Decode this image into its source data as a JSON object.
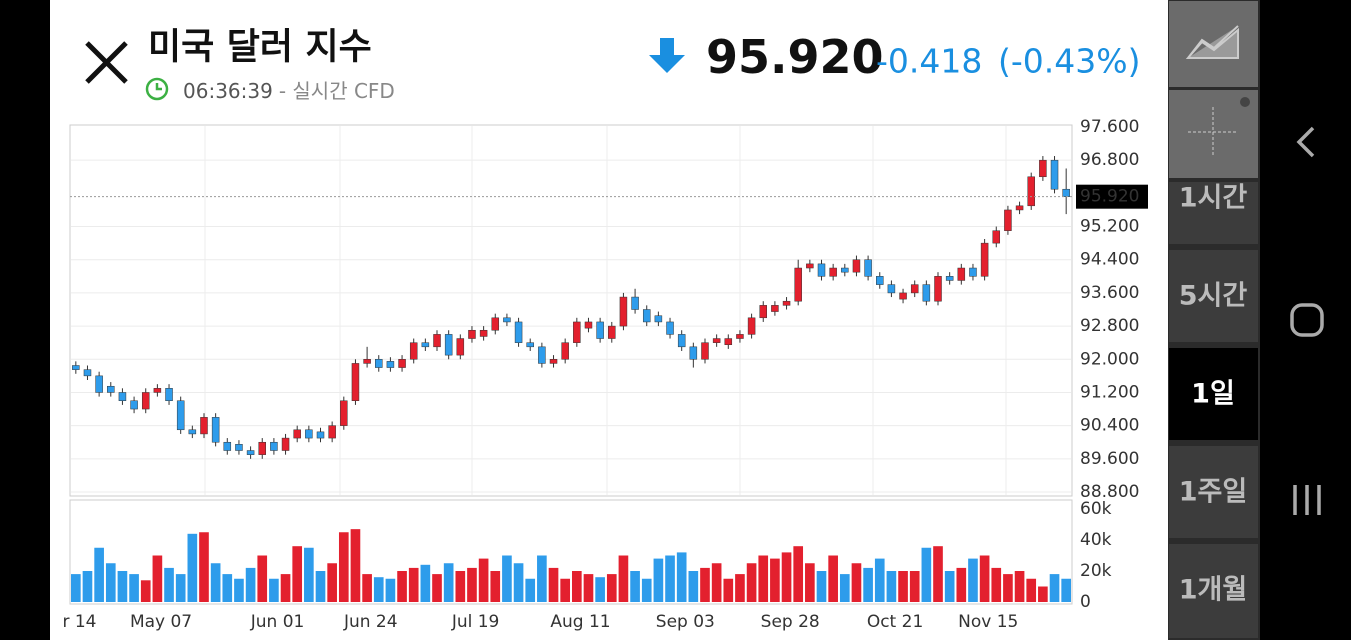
{
  "header": {
    "title": "미국 달러 지수",
    "time": "06:36:39",
    "subtitle": "- 실시간 CFD",
    "price": "95.920",
    "change": "-0.418",
    "change_percent": "(-0.43%)"
  },
  "timeframes": [
    "1시간",
    "5시간",
    "1일",
    "1주일",
    "1개월"
  ],
  "selected_timeframe": 2,
  "chart_data": [
    {
      "type": "candlestick",
      "categories": [
        null,
        "r 14",
        null,
        null,
        null,
        null,
        null,
        null,
        "May 07",
        null,
        null,
        null,
        null,
        null,
        null,
        null,
        null,
        null,
        "Jun 01",
        null,
        null,
        null,
        null,
        null,
        null,
        null,
        "Jun 24",
        null,
        null,
        null,
        null,
        null,
        null,
        null,
        null,
        "Jul 19",
        null,
        null,
        null,
        null,
        null,
        null,
        null,
        null,
        "Aug 11",
        null,
        null,
        null,
        null,
        null,
        null,
        null,
        null,
        "Sep 03",
        null,
        null,
        null,
        null,
        null,
        null,
        null,
        null,
        "Sep 28",
        null,
        null,
        null,
        null,
        null,
        null,
        null,
        null,
        "Oct 21",
        null,
        null,
        null,
        null,
        null,
        null,
        null,
        "Nov 15",
        null,
        null,
        null,
        null,
        null,
        null
      ],
      "open": [
        91.85,
        91.75,
        91.6,
        91.35,
        91.2,
        91.0,
        90.8,
        91.2,
        91.3,
        91.0,
        90.3,
        90.2,
        90.6,
        90.0,
        89.95,
        89.8,
        89.7,
        90.0,
        89.8,
        90.1,
        90.3,
        90.25,
        90.1,
        90.4,
        91.0,
        91.9,
        92.0,
        91.95,
        91.8,
        92.0,
        92.4,
        92.3,
        92.6,
        92.1,
        92.5,
        92.55,
        92.7,
        93.0,
        92.9,
        92.4,
        92.3,
        91.9,
        92.0,
        92.4,
        92.75,
        92.9,
        92.5,
        92.8,
        93.5,
        93.2,
        93.05,
        92.9,
        92.6,
        92.3,
        92.0,
        92.4,
        92.35,
        92.5,
        92.6,
        93.0,
        93.15,
        93.3,
        93.4,
        94.2,
        94.3,
        94.0,
        94.2,
        94.1,
        94.4,
        94.0,
        93.8,
        93.45,
        93.6,
        93.8,
        93.4,
        94.0,
        93.9,
        94.2,
        94.0,
        94.8,
        95.1,
        95.6,
        95.7,
        96.4,
        96.8,
        96.1
      ],
      "high": [
        91.95,
        91.85,
        91.7,
        91.45,
        91.3,
        91.1,
        91.3,
        91.4,
        91.4,
        91.1,
        90.4,
        90.7,
        90.7,
        90.1,
        90.05,
        89.9,
        90.1,
        90.1,
        90.2,
        90.4,
        90.4,
        90.35,
        90.5,
        91.1,
        92.0,
        92.3,
        92.1,
        92.05,
        92.1,
        92.5,
        92.5,
        92.7,
        92.7,
        92.6,
        92.8,
        92.8,
        93.1,
        93.1,
        93.0,
        92.5,
        92.4,
        92.1,
        92.5,
        93.0,
        93.0,
        93.0,
        92.9,
        93.6,
        93.7,
        93.3,
        93.15,
        93.0,
        92.7,
        92.4,
        92.5,
        92.6,
        92.6,
        92.7,
        93.1,
        93.4,
        93.4,
        93.5,
        94.4,
        94.4,
        94.4,
        94.3,
        94.3,
        94.5,
        94.5,
        94.1,
        93.9,
        93.7,
        93.9,
        93.9,
        94.1,
        94.1,
        94.3,
        94.3,
        94.9,
        95.2,
        95.7,
        95.8,
        96.5,
        96.9,
        96.9,
        96.6
      ],
      "low": [
        91.65,
        91.5,
        91.1,
        91.1,
        90.9,
        90.7,
        90.7,
        91.1,
        90.9,
        90.2,
        90.1,
        90.1,
        89.9,
        89.7,
        89.7,
        89.6,
        89.6,
        89.7,
        89.7,
        90.0,
        90.0,
        90.0,
        90.0,
        90.3,
        90.9,
        91.8,
        91.7,
        91.7,
        91.7,
        91.9,
        92.2,
        92.2,
        92.0,
        92.0,
        92.4,
        92.45,
        92.6,
        92.8,
        92.3,
        92.2,
        91.8,
        91.8,
        91.9,
        92.3,
        92.65,
        92.4,
        92.4,
        92.7,
        93.1,
        92.8,
        92.8,
        92.5,
        92.2,
        91.8,
        91.9,
        92.3,
        92.25,
        92.4,
        92.5,
        92.9,
        93.05,
        93.2,
        93.3,
        94.1,
        93.9,
        93.9,
        94.0,
        94.0,
        93.9,
        93.7,
        93.5,
        93.35,
        93.5,
        93.3,
        93.3,
        93.8,
        93.8,
        93.9,
        93.9,
        94.7,
        95.0,
        95.5,
        95.6,
        96.3,
        96.0,
        95.5
      ],
      "close": [
        91.75,
        91.6,
        91.2,
        91.2,
        91.0,
        90.8,
        91.2,
        91.3,
        91.0,
        90.3,
        90.2,
        90.6,
        90.0,
        89.8,
        89.8,
        89.7,
        90.0,
        89.8,
        90.1,
        90.3,
        90.1,
        90.1,
        90.4,
        91.0,
        91.9,
        92.0,
        91.8,
        91.8,
        92.0,
        92.4,
        92.3,
        92.6,
        92.1,
        92.5,
        92.7,
        92.7,
        93.0,
        92.9,
        92.4,
        92.3,
        91.9,
        92.0,
        92.4,
        92.9,
        92.9,
        92.5,
        92.8,
        93.5,
        93.2,
        92.9,
        92.9,
        92.6,
        92.3,
        92.0,
        92.4,
        92.5,
        92.5,
        92.6,
        93.0,
        93.3,
        93.3,
        93.4,
        94.2,
        94.3,
        94.0,
        94.2,
        94.1,
        94.4,
        94.0,
        93.8,
        93.6,
        93.6,
        93.8,
        93.4,
        94.0,
        93.9,
        94.2,
        94.0,
        94.8,
        95.1,
        95.6,
        95.7,
        96.4,
        96.8,
        96.1,
        95.92
      ],
      "up_color": "#e3202e",
      "down_color": "#2e9ceb",
      "last": {
        "value": 95.92,
        "label": "95.920"
      },
      "ylim": [
        88.8,
        97.6
      ],
      "yticks": [
        {
          "value": 97.6,
          "label": "97.600"
        },
        {
          "value": 96.8,
          "label": "96.800"
        },
        {
          "value": 95.2,
          "label": "95.200"
        },
        {
          "value": 94.4,
          "label": "94.400"
        },
        {
          "value": 93.6,
          "label": "93.600"
        },
        {
          "value": 92.8,
          "label": "92.800"
        },
        {
          "value": 92.0,
          "label": "92.000"
        },
        {
          "value": 91.2,
          "label": "91.200"
        },
        {
          "value": 90.4,
          "label": "90.400"
        },
        {
          "value": 89.6,
          "label": "89.600"
        },
        {
          "value": 88.8,
          "label": "88.800"
        }
      ],
      "grid": true
    },
    {
      "type": "bar",
      "values": [
        18000,
        20000,
        35000,
        25000,
        20000,
        18000,
        14000,
        30000,
        22000,
        18000,
        44000,
        45000,
        25000,
        18000,
        15000,
        22000,
        30000,
        15000,
        18000,
        36000,
        35000,
        20000,
        25000,
        45000,
        47000,
        18000,
        16000,
        15000,
        20000,
        22000,
        24000,
        18000,
        25000,
        20000,
        22000,
        28000,
        20000,
        30000,
        25000,
        15000,
        30000,
        22000,
        15000,
        20000,
        18000,
        16000,
        18000,
        30000,
        20000,
        15000,
        28000,
        30000,
        32000,
        20000,
        22000,
        25000,
        15000,
        18000,
        25000,
        30000,
        28000,
        32000,
        36000,
        25000,
        20000,
        30000,
        18000,
        25000,
        22000,
        28000,
        20000,
        20000,
        20000,
        35000,
        36000,
        20000,
        22000,
        28000,
        30000,
        22000,
        18000,
        20000,
        15000,
        10000,
        18000,
        15000
      ],
      "ylim": [
        0,
        60000
      ],
      "yticks": [
        {
          "value": 60000,
          "label": "60k"
        },
        {
          "value": 40000,
          "label": "40k"
        },
        {
          "value": 20000,
          "label": "20k"
        },
        0
      ]
    }
  ]
}
